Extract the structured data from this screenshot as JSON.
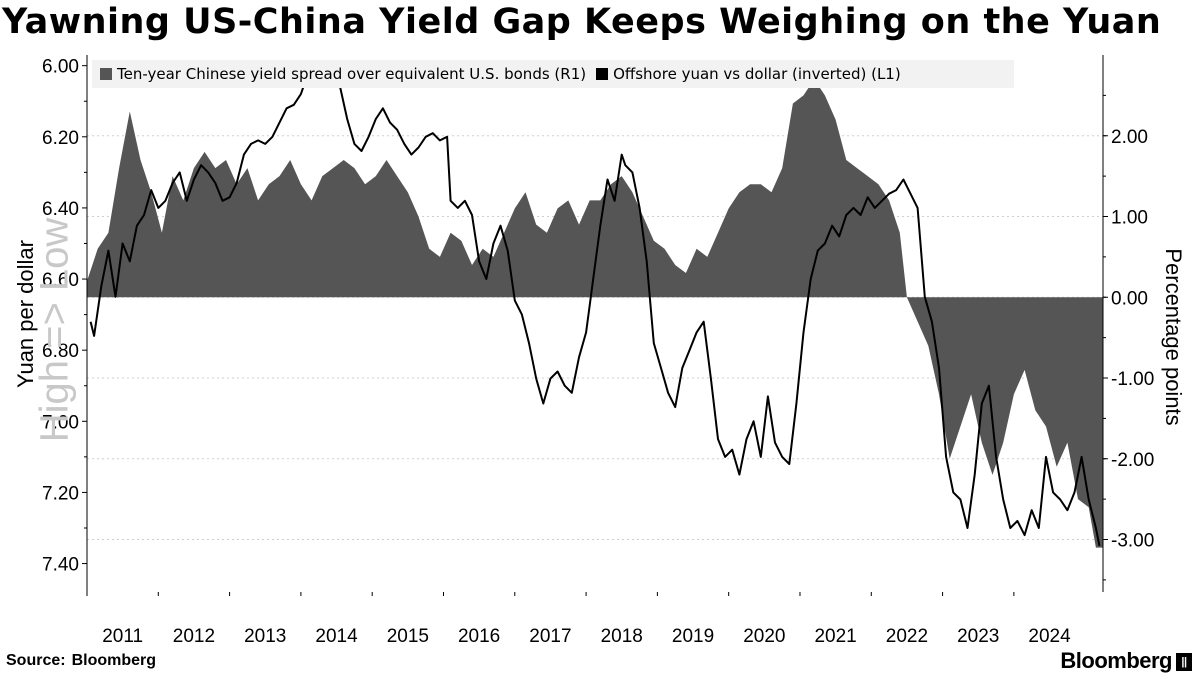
{
  "title": "Yawning US-China Yield Gap Keeps Weighing on the Yuan",
  "source_label": "Source:",
  "source_value": "Bloomberg",
  "brand": "Bloomberg",
  "brand_mark": "||",
  "watermark": "High => Low",
  "chart_data": {
    "type": "area+line",
    "title": "Yawning US-China Yield Gap Keeps Weighing on the Yuan",
    "y_left_label": "Yuan per dollar",
    "y_right_label": "Percentage points",
    "y_left_range": [
      5.97,
      7.48
    ],
    "y_left_inverted": true,
    "y_left_ticks": [
      "6.00",
      "6.20",
      "6.40",
      "6.60",
      "6.80",
      "7.00",
      "7.20",
      "7.40"
    ],
    "y_right_range": [
      -3.65,
      3.0
    ],
    "y_right_ticks": [
      "2.00",
      "1.00",
      "0.00",
      "-1.00",
      "-2.00",
      "-3.00"
    ],
    "x_range": [
      2010.5,
      2024.75
    ],
    "x_ticks": [
      "2011",
      "2012",
      "2013",
      "2014",
      "2015",
      "2016",
      "2017",
      "2018",
      "2019",
      "2020",
      "2021",
      "2022",
      "2023",
      "2024"
    ],
    "series": [
      {
        "name": "Ten-year Chinese yield spread over equivalent U.S. bonds (R1)",
        "axis": "right",
        "style": "area",
        "color": "#555555",
        "x": [
          2010.5,
          2010.65,
          2010.8,
          2010.95,
          2011.1,
          2011.25,
          2011.4,
          2011.55,
          2011.7,
          2011.85,
          2012.0,
          2012.15,
          2012.3,
          2012.45,
          2012.6,
          2012.75,
          2012.9,
          2013.05,
          2013.2,
          2013.35,
          2013.5,
          2013.65,
          2013.8,
          2013.95,
          2014.1,
          2014.25,
          2014.4,
          2014.55,
          2014.7,
          2014.85,
          2015.0,
          2015.15,
          2015.3,
          2015.45,
          2015.6,
          2015.75,
          2015.9,
          2016.05,
          2016.2,
          2016.35,
          2016.5,
          2016.65,
          2016.8,
          2016.95,
          2017.1,
          2017.25,
          2017.4,
          2017.55,
          2017.7,
          2017.85,
          2018.0,
          2018.15,
          2018.3,
          2018.45,
          2018.6,
          2018.75,
          2018.9,
          2019.05,
          2019.2,
          2019.35,
          2019.5,
          2019.65,
          2019.8,
          2019.95,
          2020.1,
          2020.25,
          2020.4,
          2020.55,
          2020.7,
          2020.85,
          2021.0,
          2021.15,
          2021.3,
          2021.45,
          2021.6,
          2021.75,
          2021.9,
          2022.0,
          2022.15,
          2022.3,
          2022.45,
          2022.6,
          2022.75,
          2022.9,
          2023.05,
          2023.2,
          2023.35,
          2023.5,
          2023.65,
          2023.8,
          2023.95,
          2024.1,
          2024.25,
          2024.4,
          2024.55,
          2024.65,
          2024.75
        ],
        "values": [
          0.2,
          0.6,
          0.8,
          1.6,
          2.3,
          1.7,
          1.3,
          0.8,
          1.5,
          1.2,
          1.6,
          1.8,
          1.6,
          1.7,
          1.4,
          1.6,
          1.2,
          1.4,
          1.5,
          1.7,
          1.4,
          1.2,
          1.5,
          1.6,
          1.7,
          1.6,
          1.4,
          1.5,
          1.7,
          1.5,
          1.3,
          1.0,
          0.6,
          0.5,
          0.8,
          0.7,
          0.4,
          0.6,
          0.5,
          0.8,
          1.1,
          1.3,
          0.9,
          0.8,
          1.1,
          1.2,
          0.9,
          1.2,
          1.2,
          1.4,
          1.5,
          1.3,
          1.0,
          0.7,
          0.6,
          0.4,
          0.3,
          0.6,
          0.5,
          0.8,
          1.1,
          1.3,
          1.4,
          1.4,
          1.3,
          1.6,
          2.4,
          2.5,
          2.7,
          2.5,
          2.2,
          1.7,
          1.6,
          1.5,
          1.4,
          1.2,
          0.8,
          0.0,
          -0.3,
          -0.6,
          -1.2,
          -2.0,
          -1.6,
          -1.2,
          -1.8,
          -2.2,
          -1.8,
          -1.2,
          -0.9,
          -1.4,
          -1.6,
          -2.1,
          -1.8,
          -2.5,
          -2.6,
          -3.1,
          -3.1
        ]
      },
      {
        "name": "Offshore yuan vs dollar (inverted) (L1)",
        "axis": "left",
        "style": "line",
        "color": "#000000",
        "x": [
          2010.55,
          2010.6,
          2010.7,
          2010.8,
          2010.9,
          2011.0,
          2011.1,
          2011.2,
          2011.3,
          2011.4,
          2011.5,
          2011.6,
          2011.7,
          2011.8,
          2011.9,
          2012.0,
          2012.1,
          2012.2,
          2012.3,
          2012.4,
          2012.5,
          2012.6,
          2012.7,
          2012.8,
          2012.9,
          2013.0,
          2013.1,
          2013.2,
          2013.3,
          2013.4,
          2013.5,
          2013.55,
          2013.65,
          2013.75,
          2013.85,
          2013.95,
          2014.05,
          2014.15,
          2014.25,
          2014.35,
          2014.45,
          2014.55,
          2014.65,
          2014.75,
          2014.85,
          2014.95,
          2015.05,
          2015.15,
          2015.25,
          2015.35,
          2015.45,
          2015.55,
          2015.6,
          2015.7,
          2015.8,
          2015.9,
          2016.0,
          2016.1,
          2016.2,
          2016.3,
          2016.4,
          2016.5,
          2016.6,
          2016.7,
          2016.8,
          2016.9,
          2017.0,
          2017.1,
          2017.2,
          2017.3,
          2017.4,
          2017.5,
          2017.6,
          2017.7,
          2017.8,
          2017.9,
          2018.0,
          2018.05,
          2018.15,
          2018.25,
          2018.35,
          2018.45,
          2018.55,
          2018.65,
          2018.75,
          2018.85,
          2018.95,
          2019.05,
          2019.15,
          2019.25,
          2019.35,
          2019.45,
          2019.55,
          2019.65,
          2019.75,
          2019.85,
          2019.95,
          2020.05,
          2020.15,
          2020.25,
          2020.35,
          2020.45,
          2020.55,
          2020.65,
          2020.75,
          2020.85,
          2020.95,
          2021.05,
          2021.15,
          2021.25,
          2021.35,
          2021.45,
          2021.55,
          2021.65,
          2021.75,
          2021.85,
          2021.95,
          2022.05,
          2022.15,
          2022.25,
          2022.35,
          2022.45,
          2022.55,
          2022.65,
          2022.75,
          2022.85,
          2022.95,
          2023.05,
          2023.15,
          2023.25,
          2023.35,
          2023.45,
          2023.55,
          2023.65,
          2023.75,
          2023.85,
          2023.95,
          2024.05,
          2024.15,
          2024.25,
          2024.35,
          2024.45,
          2024.55,
          2024.65,
          2024.7
        ],
        "values": [
          6.72,
          6.76,
          6.62,
          6.52,
          6.65,
          6.5,
          6.55,
          6.45,
          6.42,
          6.35,
          6.4,
          6.38,
          6.33,
          6.3,
          6.38,
          6.32,
          6.28,
          6.3,
          6.33,
          6.38,
          6.37,
          6.33,
          6.25,
          6.22,
          6.21,
          6.22,
          6.2,
          6.16,
          6.12,
          6.11,
          6.08,
          6.05,
          6.04,
          6.05,
          6.03,
          6.05,
          6.06,
          6.15,
          6.22,
          6.24,
          6.2,
          6.15,
          6.12,
          6.16,
          6.18,
          6.22,
          6.25,
          6.23,
          6.2,
          6.19,
          6.21,
          6.2,
          6.38,
          6.4,
          6.38,
          6.42,
          6.55,
          6.6,
          6.5,
          6.45,
          6.52,
          6.66,
          6.7,
          6.78,
          6.88,
          6.95,
          6.88,
          6.86,
          6.9,
          6.92,
          6.82,
          6.75,
          6.6,
          6.45,
          6.32,
          6.38,
          6.25,
          6.28,
          6.3,
          6.4,
          6.55,
          6.78,
          6.85,
          6.92,
          6.96,
          6.85,
          6.8,
          6.75,
          6.72,
          6.88,
          7.05,
          7.1,
          7.08,
          7.15,
          7.05,
          7.0,
          7.1,
          6.93,
          7.06,
          7.1,
          7.12,
          6.95,
          6.75,
          6.6,
          6.52,
          6.5,
          6.45,
          6.48,
          6.42,
          6.4,
          6.42,
          6.37,
          6.4,
          6.38,
          6.36,
          6.35,
          6.32,
          6.36,
          6.4,
          6.65,
          6.72,
          6.85,
          7.1,
          7.2,
          7.22,
          7.3,
          7.15,
          6.95,
          6.9,
          7.1,
          7.22,
          7.3,
          7.28,
          7.32,
          7.25,
          7.3,
          7.1,
          7.2,
          7.22,
          7.25,
          7.2,
          7.1,
          7.22,
          7.3,
          7.35
        ]
      }
    ],
    "legend": [
      "Ten-year Chinese yield spread over equivalent U.S. bonds (R1)",
      "Offshore yuan vs dollar (inverted) (L1)"
    ],
    "legend_position": "top"
  }
}
